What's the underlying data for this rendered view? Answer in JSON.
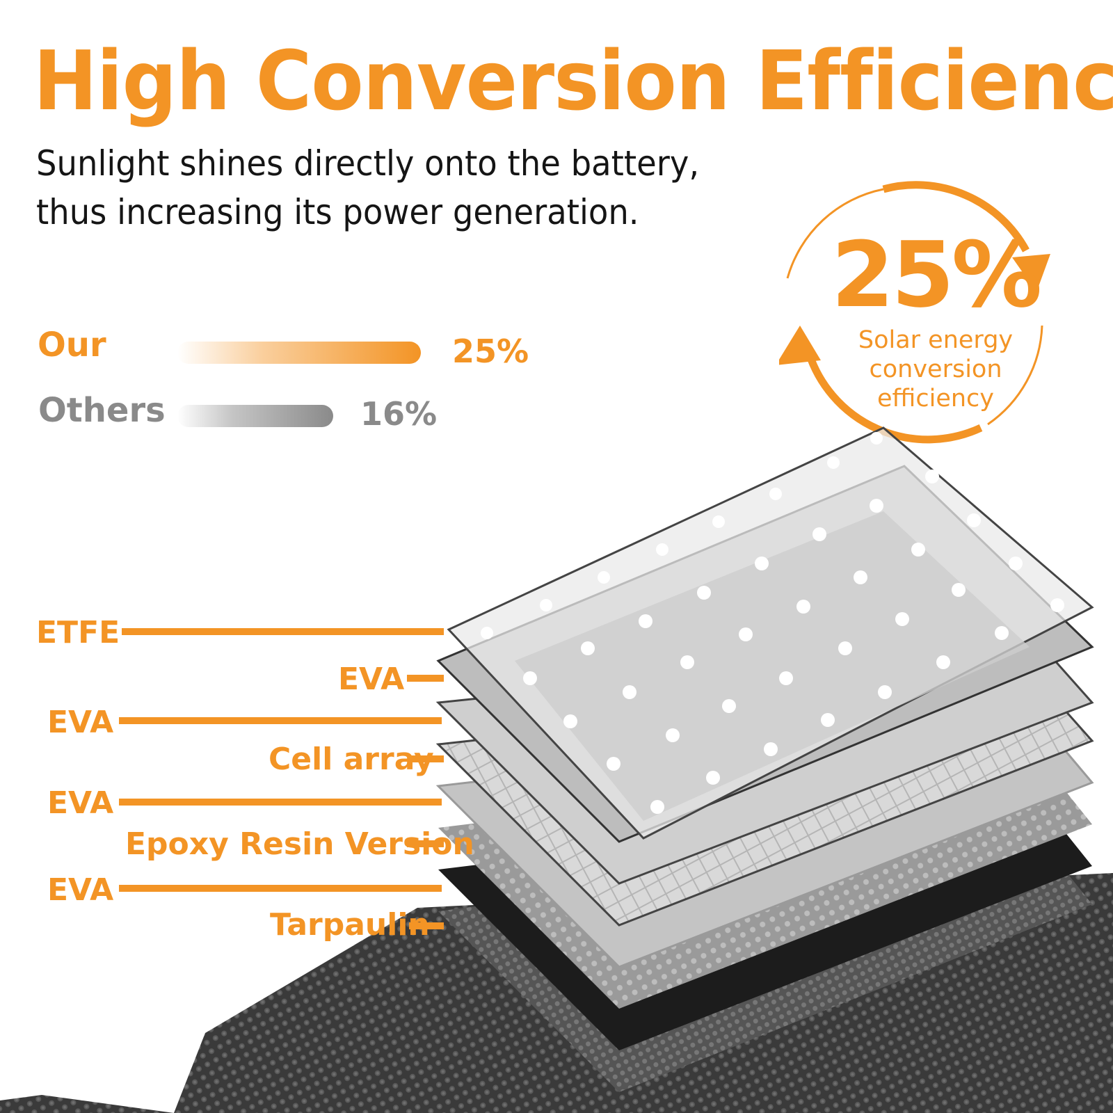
{
  "header": {
    "title": "High Conversion Efficiency",
    "subtitle_line1": "Sunlight shines directly onto the battery,",
    "subtitle_line2": "thus increasing its power generation."
  },
  "comparison": {
    "our": {
      "label": "Our",
      "value": "25%",
      "fraction": 0.25
    },
    "others": {
      "label": "Others",
      "value": "16%",
      "fraction": 0.16
    }
  },
  "badge": {
    "value": "25%",
    "caption_line1": "Solar energy",
    "caption_line2": "conversion",
    "caption_line3": "efficiency"
  },
  "layers": [
    {
      "label": "ETFE"
    },
    {
      "label": "EVA"
    },
    {
      "label": "EVA"
    },
    {
      "label": "Cell array"
    },
    {
      "label": "EVA"
    },
    {
      "label": "Epoxy Resin Version"
    },
    {
      "label": "EVA"
    },
    {
      "label": "Tarpaulin"
    }
  ],
  "colors": {
    "accent": "#f39425",
    "text_dark": "#151515",
    "others_gray": "#8a8a8a"
  },
  "icons": {
    "badge_arrows": "circular-arrows-icon",
    "panel": "solar-panel-layers-illustration"
  }
}
